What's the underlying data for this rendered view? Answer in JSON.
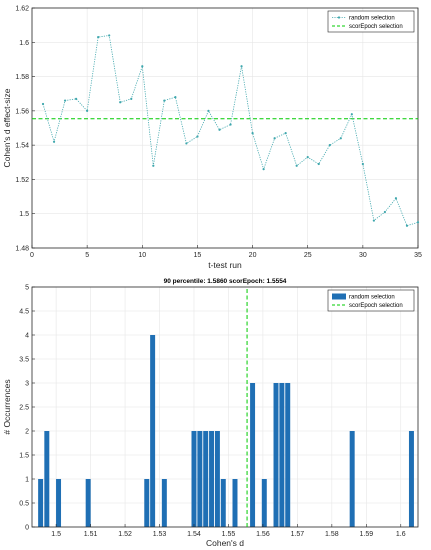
{
  "colors": {
    "random": "#3fa7ad",
    "scorepoch": "#00cc00",
    "bar": "#1f6fb4",
    "axis": "#262626",
    "grid": "#e6e6e6"
  },
  "chart_data": [
    {
      "type": "line",
      "title": "",
      "xlabel": "t-test run",
      "ylabel": "Cohen's d effect-size",
      "xlim": [
        0,
        35
      ],
      "ylim": [
        1.48,
        1.62
      ],
      "xticks": [
        "0",
        "5",
        "10",
        "15",
        "20",
        "25",
        "30",
        "35"
      ],
      "yticks": [
        "1.48",
        "1.5",
        "1.52",
        "1.54",
        "1.56",
        "1.58",
        "1.6",
        "1.62"
      ],
      "grid": true,
      "legend_position": "top-right",
      "series": [
        {
          "name": "random selection",
          "style": "dotted-with-markers",
          "x": [
            1,
            2,
            3,
            4,
            5,
            6,
            7,
            8,
            9,
            10,
            11,
            12,
            13,
            14,
            15,
            16,
            17,
            18,
            19,
            20,
            21,
            22,
            23,
            24,
            25,
            26,
            27,
            28,
            29,
            30,
            31,
            32,
            33,
            34,
            35
          ],
          "y": [
            1.564,
            1.542,
            1.566,
            1.567,
            1.56,
            1.603,
            1.604,
            1.565,
            1.567,
            1.586,
            1.528,
            1.566,
            1.568,
            1.541,
            1.545,
            1.56,
            1.549,
            1.552,
            1.586,
            1.547,
            1.526,
            1.544,
            1.547,
            1.528,
            1.533,
            1.529,
            1.54,
            1.544,
            1.558,
            1.529,
            1.496,
            1.501,
            1.509,
            1.493,
            1.495
          ]
        },
        {
          "name": "scorEpoch selection",
          "style": "dashed",
          "x": [
            0,
            35
          ],
          "y": [
            1.5554,
            1.5554
          ]
        }
      ]
    },
    {
      "type": "bar",
      "title": "90 percentile: 1.5860 scorEpoch: 1.5554",
      "xlabel": "Cohen's d",
      "ylabel": "# Occurrences",
      "xlim": [
        1.493,
        1.605
      ],
      "ylim": [
        0,
        5
      ],
      "xticks": [
        "1.5",
        "1.51",
        "1.52",
        "1.53",
        "1.54",
        "1.55",
        "1.56",
        "1.57",
        "1.58",
        "1.59",
        "1.6"
      ],
      "yticks": [
        "0",
        "0.5",
        "1",
        "1.5",
        "2",
        "2.5",
        "3",
        "3.5",
        "4",
        "4.5",
        "5"
      ],
      "grid": true,
      "legend_position": "top-right",
      "series": [
        {
          "name": "random selection",
          "bin_width": 0.0017,
          "x": [
            1.4955,
            1.4973,
            1.5007,
            1.5093,
            1.5263,
            1.528,
            1.5314,
            1.54,
            1.5417,
            1.5434,
            1.5451,
            1.5468,
            1.5485,
            1.5519,
            1.557,
            1.5604,
            1.5638,
            1.5655,
            1.5672,
            1.5859,
            1.6031
          ],
          "values": [
            1,
            2,
            1,
            1,
            1,
            4,
            1,
            2,
            2,
            2,
            2,
            2,
            1,
            1,
            3,
            1,
            3,
            3,
            3,
            2,
            2
          ]
        },
        {
          "name": "scorEpoch selection",
          "style": "dashed",
          "x": [
            1.5554,
            1.5554
          ],
          "values": [
            0,
            5
          ]
        }
      ]
    }
  ]
}
